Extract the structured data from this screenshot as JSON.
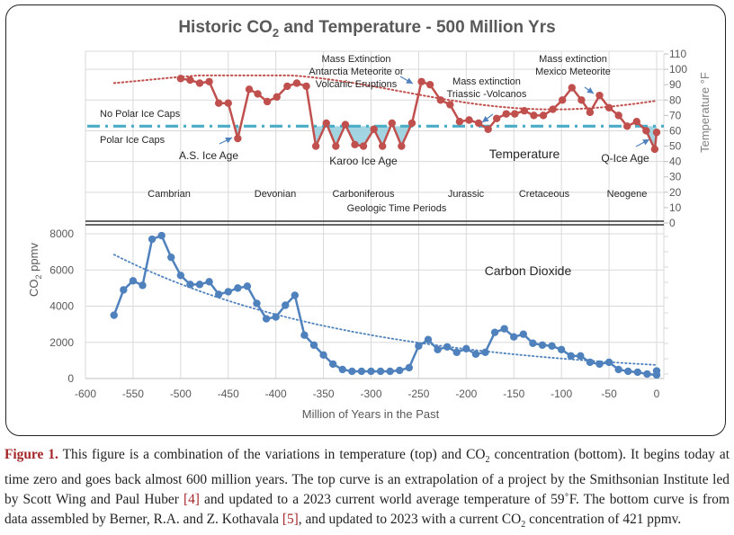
{
  "figure": {
    "title_pre": "Historic CO",
    "title_sub": "2",
    "title_post": " and Temperature - 500 Million Yrs"
  },
  "chart_data": [
    {
      "type": "line",
      "name": "temperature",
      "series_label": "Temperature",
      "ylabel": "Temperature °F",
      "ylim": [
        0,
        110
      ],
      "yticks": [
        0,
        10,
        20,
        30,
        40,
        50,
        60,
        70,
        80,
        90,
        100,
        110
      ],
      "xlim": [
        -600,
        0
      ],
      "grid": true,
      "threshold": 63,
      "threshold_labels": {
        "above": "No Polar Ice Caps",
        "below": "Polar Ice Caps"
      },
      "x": [
        -500,
        -490,
        -480,
        -470,
        -460,
        -450,
        -440,
        -428,
        -419,
        -409,
        -399,
        -388,
        -378,
        -368,
        -358,
        -347,
        -337,
        -327,
        -317,
        -308,
        -297,
        -288,
        -278,
        -268,
        -257,
        -247,
        -238,
        -227,
        -217,
        -207,
        -197,
        -187,
        -177,
        -168,
        -158,
        -149,
        -139,
        -129,
        -119,
        -109,
        -99,
        -89,
        -79,
        -70,
        -60,
        -50,
        -40,
        -31,
        -21,
        -11,
        -2,
        0
      ],
      "values": [
        94,
        93,
        91,
        92,
        78,
        78,
        55,
        87,
        84,
        79,
        82,
        89,
        91,
        89,
        50,
        65,
        50,
        64,
        51,
        50,
        61,
        50,
        65,
        50,
        65,
        92,
        90,
        80,
        77,
        66,
        67,
        65,
        61,
        68,
        71,
        71,
        73,
        70,
        70,
        74,
        80,
        88,
        80,
        72,
        83,
        75,
        70,
        63,
        66,
        60,
        48,
        59
      ],
      "trend_label": "polynomial trend",
      "periods": [
        "Cambrian",
        "Devonian",
        "Carboniferous",
        "Jurassic",
        "Cretaceous",
        "Neogene"
      ],
      "periods_title": "Geologic Time Periods",
      "annotations": [
        {
          "text": [
            "A.S. Ice Age"
          ]
        },
        {
          "text": [
            "Karoo Ice Age"
          ]
        },
        {
          "text": [
            "Mass Extinction",
            "Antarctia Meteorite or",
            "Volcanic Eruptions"
          ]
        },
        {
          "text": [
            "Mass extinction",
            "Triassic -Volcanos"
          ]
        },
        {
          "text": [
            "Mass extinction",
            "Mexico Meteorite"
          ]
        },
        {
          "text": [
            "Q-Ice Age"
          ]
        }
      ],
      "colors": {
        "line": "#c0504d",
        "marker": "#c0504d",
        "trend": "#c0504d",
        "threshold": "#4bacc6",
        "ice_fill": "#92cddc",
        "arrow": "#4f81bd"
      }
    },
    {
      "type": "line",
      "name": "co2",
      "series_label": "Carbon Dioxide",
      "ylabel_pre": "CO",
      "ylabel_sub": "2",
      "ylabel_post": " ppmv",
      "xlabel": "Million of Years in the Past",
      "xlim": [
        -600,
        0
      ],
      "xticks": [
        -600,
        -550,
        -500,
        -450,
        -400,
        -350,
        -300,
        -250,
        -200,
        -150,
        -100,
        -50,
        0
      ],
      "ylim": [
        0,
        8000
      ],
      "yticks": [
        0,
        2000,
        4000,
        6000,
        8000
      ],
      "grid": true,
      "x": [
        -570,
        -560,
        -550,
        -540,
        -530,
        -520,
        -510,
        -500,
        -490,
        -480,
        -470,
        -460,
        -450,
        -440,
        -430,
        -420,
        -410,
        -400,
        -390,
        -380,
        -370,
        -360,
        -350,
        -340,
        -330,
        -320,
        -310,
        -300,
        -290,
        -280,
        -270,
        -260,
        -250,
        -240,
        -230,
        -220,
        -210,
        -200,
        -190,
        -180,
        -170,
        -160,
        -150,
        -140,
        -130,
        -120,
        -110,
        -100,
        -90,
        -80,
        -70,
        -60,
        -50,
        -40,
        -30,
        -20,
        -10,
        0,
        0
      ],
      "values": [
        3500,
        4900,
        5400,
        5150,
        7700,
        7900,
        6700,
        5700,
        5200,
        5200,
        5350,
        4650,
        4800,
        5000,
        5100,
        4150,
        3300,
        3400,
        4050,
        4600,
        2400,
        1850,
        1300,
        800,
        500,
        400,
        400,
        400,
        400,
        400,
        450,
        600,
        1800,
        2150,
        1600,
        1750,
        1450,
        1650,
        1350,
        1450,
        2550,
        2750,
        2300,
        2450,
        1950,
        1850,
        1800,
        1600,
        1250,
        1250,
        900,
        800,
        900,
        500,
        400,
        350,
        250,
        200,
        421
      ],
      "trend_start": 6850,
      "trend_end": 750,
      "colors": {
        "line": "#4f81bd",
        "marker": "#4f81bd",
        "trend": "#4f81bd"
      }
    }
  ],
  "caption": {
    "fig_label": "Figure 1.",
    "part1": " This figure is a combination of the variations in temperature (top) and CO",
    "sub1": "2",
    "part2": " concentration (bottom). It begins today at time zero and goes back almost 600 million years. The top curve is an extrapolation of a project by the Smithsonian Institute led by Scott Wing and Paul Huber ",
    "ref1": "[4]",
    "part3": " and updated to a 2023 current world average temperature of 59˚F. The bottom curve is from data assembled by Berner, R.A. and Z. Kothavala ",
    "ref2": "[5]",
    "part4": ", and updated to 2023 with a current CO",
    "sub2": "2",
    "part5": " concentration of 421 ppmv."
  }
}
